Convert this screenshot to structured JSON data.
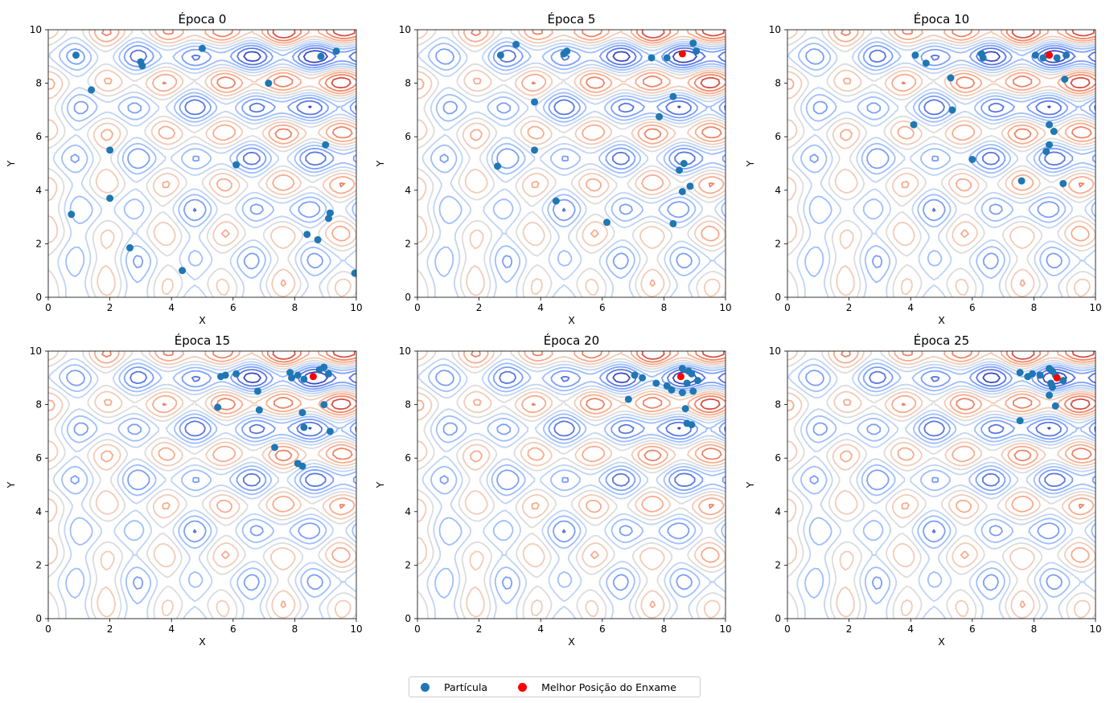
{
  "chart_data": {
    "type": "scatter",
    "overlay": "contour",
    "colormap": "coolwarm",
    "grid": false,
    "legend_position": "bottom-center",
    "colors": {
      "particle": "#1f77b4",
      "best": "#ff0000"
    },
    "legend": [
      {
        "key": "particle",
        "label": "Partícula"
      },
      {
        "key": "best",
        "label": "Melhor Posição do Enxame"
      }
    ],
    "panels": [
      {
        "title": "Época 0",
        "xlabel": "X",
        "ylabel": "Y",
        "xlim": [
          0,
          10
        ],
        "ylim": [
          0,
          10
        ],
        "xticks": [
          "0",
          "2",
          "4",
          "6",
          "8",
          "10"
        ],
        "yticks": [
          "0",
          "2",
          "4",
          "6",
          "8",
          "10"
        ],
        "particles": [
          [
            0.9,
            9.05
          ],
          [
            3.0,
            8.8
          ],
          [
            3.05,
            8.65
          ],
          [
            5.0,
            9.3
          ],
          [
            8.85,
            9.0
          ],
          [
            9.35,
            9.2
          ],
          [
            1.4,
            7.75
          ],
          [
            7.15,
            8.0
          ],
          [
            2.0,
            5.5
          ],
          [
            9.0,
            5.7
          ],
          [
            6.1,
            4.95
          ],
          [
            2.0,
            3.7
          ],
          [
            0.75,
            3.1
          ],
          [
            9.15,
            3.15
          ],
          [
            9.1,
            2.95
          ],
          [
            8.4,
            2.35
          ],
          [
            8.75,
            2.15
          ],
          [
            2.65,
            1.85
          ],
          [
            4.35,
            1.0
          ],
          [
            9.95,
            0.9
          ]
        ],
        "best": null
      },
      {
        "title": "Época 5",
        "xlabel": "X",
        "ylabel": "Y",
        "xlim": [
          0,
          10
        ],
        "ylim": [
          0,
          10
        ],
        "xticks": [
          "0",
          "2",
          "4",
          "6",
          "8",
          "10"
        ],
        "yticks": [
          "0",
          "2",
          "4",
          "6",
          "8",
          "10"
        ],
        "particles": [
          [
            2.7,
            9.05
          ],
          [
            3.2,
            9.45
          ],
          [
            4.75,
            9.1
          ],
          [
            4.85,
            9.2
          ],
          [
            7.6,
            8.95
          ],
          [
            8.1,
            8.95
          ],
          [
            8.95,
            9.5
          ],
          [
            9.05,
            9.2
          ],
          [
            3.8,
            7.3
          ],
          [
            8.3,
            7.5
          ],
          [
            7.85,
            6.75
          ],
          [
            3.8,
            5.5
          ],
          [
            2.6,
            4.9
          ],
          [
            8.65,
            5.0
          ],
          [
            8.5,
            4.75
          ],
          [
            8.85,
            4.15
          ],
          [
            8.6,
            3.95
          ],
          [
            4.5,
            3.6
          ],
          [
            6.15,
            2.8
          ],
          [
            8.3,
            2.75
          ]
        ],
        "best": [
          8.6,
          9.1
        ]
      },
      {
        "title": "Época 10",
        "xlabel": "X",
        "ylabel": "Y",
        "xlim": [
          0,
          10
        ],
        "ylim": [
          0,
          10
        ],
        "xticks": [
          "0",
          "2",
          "4",
          "6",
          "8",
          "10"
        ],
        "yticks": [
          "0",
          "2",
          "4",
          "6",
          "8",
          "10"
        ],
        "particles": [
          [
            4.15,
            9.05
          ],
          [
            4.5,
            8.75
          ],
          [
            6.3,
            9.1
          ],
          [
            6.35,
            8.95
          ],
          [
            8.05,
            9.05
          ],
          [
            8.3,
            8.95
          ],
          [
            8.75,
            8.95
          ],
          [
            9.05,
            9.05
          ],
          [
            5.3,
            8.2
          ],
          [
            9.0,
            8.15
          ],
          [
            5.35,
            7.0
          ],
          [
            4.1,
            6.45
          ],
          [
            8.5,
            6.45
          ],
          [
            8.65,
            6.2
          ],
          [
            8.5,
            5.7
          ],
          [
            8.4,
            5.45
          ],
          [
            6.0,
            5.15
          ],
          [
            7.6,
            4.35
          ],
          [
            8.95,
            4.25
          ]
        ],
        "best": [
          8.5,
          9.05
        ]
      },
      {
        "title": "Época 15",
        "xlabel": "X",
        "ylabel": "Y",
        "xlim": [
          0,
          10
        ],
        "ylim": [
          0,
          10
        ],
        "xticks": [
          "0",
          "2",
          "4",
          "6",
          "8",
          "10"
        ],
        "yticks": [
          "0",
          "2",
          "4",
          "6",
          "8",
          "10"
        ],
        "particles": [
          [
            5.6,
            9.05
          ],
          [
            5.75,
            9.1
          ],
          [
            6.1,
            9.15
          ],
          [
            7.85,
            9.2
          ],
          [
            7.9,
            9.0
          ],
          [
            8.1,
            9.1
          ],
          [
            8.3,
            8.95
          ],
          [
            8.8,
            9.3
          ],
          [
            8.95,
            9.4
          ],
          [
            9.1,
            9.15
          ],
          [
            6.8,
            8.5
          ],
          [
            8.95,
            8.0
          ],
          [
            5.5,
            7.9
          ],
          [
            6.85,
            7.8
          ],
          [
            8.25,
            7.7
          ],
          [
            8.3,
            7.15
          ],
          [
            9.15,
            7.0
          ],
          [
            7.35,
            6.4
          ],
          [
            8.1,
            5.8
          ],
          [
            8.25,
            5.7
          ]
        ],
        "best": [
          8.6,
          9.05
        ]
      },
      {
        "title": "Época 20",
        "xlabel": "X",
        "ylabel": "Y",
        "xlim": [
          0,
          10
        ],
        "ylim": [
          0,
          10
        ],
        "xticks": [
          "0",
          "2",
          "4",
          "6",
          "8",
          "10"
        ],
        "yticks": [
          "0",
          "2",
          "4",
          "6",
          "8",
          "10"
        ],
        "particles": [
          [
            7.05,
            9.1
          ],
          [
            7.3,
            9.0
          ],
          [
            7.75,
            8.8
          ],
          [
            8.1,
            8.7
          ],
          [
            8.25,
            8.55
          ],
          [
            8.6,
            8.45
          ],
          [
            8.6,
            9.35
          ],
          [
            8.8,
            9.25
          ],
          [
            8.9,
            9.15
          ],
          [
            8.75,
            8.8
          ],
          [
            9.1,
            8.9
          ],
          [
            8.95,
            8.5
          ],
          [
            6.85,
            8.2
          ],
          [
            8.7,
            7.85
          ],
          [
            8.75,
            7.3
          ],
          [
            8.9,
            7.25
          ]
        ],
        "best": [
          8.55,
          9.05
        ]
      },
      {
        "title": "Época 25",
        "xlabel": "X",
        "ylabel": "Y",
        "xlim": [
          0,
          10
        ],
        "ylim": [
          0,
          10
        ],
        "xticks": [
          "0",
          "2",
          "4",
          "6",
          "8",
          "10"
        ],
        "yticks": [
          "0",
          "2",
          "4",
          "6",
          "8",
          "10"
        ],
        "particles": [
          [
            7.55,
            9.2
          ],
          [
            7.8,
            9.05
          ],
          [
            7.95,
            9.15
          ],
          [
            8.2,
            9.1
          ],
          [
            8.5,
            9.35
          ],
          [
            8.6,
            9.25
          ],
          [
            8.7,
            9.1
          ],
          [
            8.55,
            8.8
          ],
          [
            8.6,
            8.65
          ],
          [
            8.5,
            8.35
          ],
          [
            8.95,
            8.9
          ],
          [
            8.7,
            7.95
          ],
          [
            7.55,
            7.4
          ]
        ],
        "best": [
          8.75,
          9.0
        ]
      }
    ]
  }
}
